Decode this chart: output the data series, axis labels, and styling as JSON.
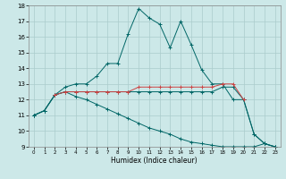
{
  "xlabel": "Humidex (Indice chaleur)",
  "xlim": [
    -0.5,
    23.5
  ],
  "ylim": [
    9,
    18
  ],
  "xticks": [
    0,
    1,
    2,
    3,
    4,
    5,
    6,
    7,
    8,
    9,
    10,
    11,
    12,
    13,
    14,
    15,
    16,
    17,
    18,
    19,
    20,
    21,
    22,
    23
  ],
  "yticks": [
    9,
    10,
    11,
    12,
    13,
    14,
    15,
    16,
    17,
    18
  ],
  "background_color": "#cce8e8",
  "grid_color": "#aacccc",
  "line_color": "#006666",
  "series": [
    {
      "x": [
        0,
        1,
        2,
        3,
        4,
        5,
        6,
        7,
        8,
        9,
        10,
        11,
        12,
        13,
        14,
        15,
        16,
        17,
        18,
        19,
        20,
        21,
        22,
        23
      ],
      "y": [
        11.0,
        11.3,
        12.3,
        12.8,
        13.0,
        13.0,
        13.5,
        14.3,
        14.3,
        16.2,
        17.8,
        17.2,
        16.8,
        15.3,
        17.0,
        15.5,
        13.9,
        13.0,
        13.0,
        12.0,
        12.0,
        9.8,
        9.2,
        9.0
      ]
    },
    {
      "x": [
        0,
        1,
        2,
        3,
        4,
        5,
        6,
        7,
        8,
        9,
        10,
        11,
        12,
        13,
        14,
        15,
        16,
        17,
        18,
        19,
        20,
        21,
        22,
        23
      ],
      "y": [
        11.0,
        11.3,
        12.3,
        12.5,
        12.5,
        12.5,
        12.5,
        12.5,
        12.5,
        12.5,
        12.5,
        12.5,
        12.5,
        12.5,
        12.5,
        12.5,
        12.5,
        12.5,
        12.8,
        12.8,
        12.0,
        9.8,
        9.2,
        9.0
      ]
    },
    {
      "x": [
        0,
        1,
        2,
        3,
        4,
        5,
        6,
        7,
        8,
        9,
        10,
        11,
        12,
        13,
        14,
        15,
        16,
        17,
        18,
        19,
        20,
        21,
        22,
        23
      ],
      "y": [
        11.0,
        11.3,
        12.3,
        12.5,
        12.2,
        12.0,
        11.7,
        11.4,
        11.1,
        10.8,
        10.5,
        10.2,
        10.0,
        9.8,
        9.5,
        9.3,
        9.2,
        9.1,
        9.0,
        9.0,
        9.0,
        9.0,
        9.2,
        9.0
      ]
    },
    {
      "x": [
        2,
        3,
        4,
        5,
        6,
        7,
        8,
        9,
        10,
        11,
        12,
        13,
        14,
        15,
        16,
        17,
        18,
        19,
        20
      ],
      "y": [
        12.3,
        12.5,
        12.5,
        12.5,
        12.5,
        12.5,
        12.5,
        12.5,
        12.8,
        12.8,
        12.8,
        12.8,
        12.8,
        12.8,
        12.8,
        12.8,
        13.0,
        13.0,
        12.0
      ],
      "color": "#cc4444"
    }
  ]
}
